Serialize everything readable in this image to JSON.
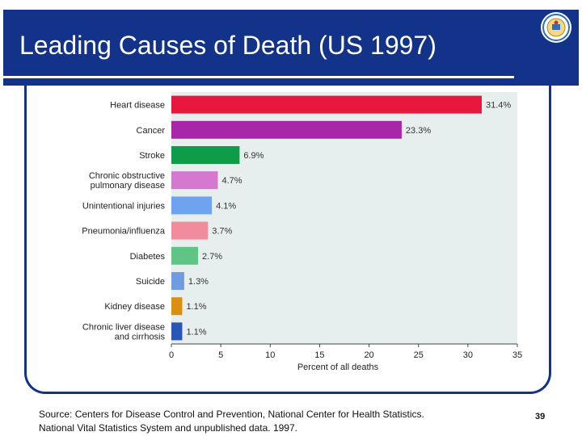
{
  "slide": {
    "title": "Leading Causes of Death (US 1997)",
    "logo_icon": "university-seal-icon",
    "source_line1": "Source: Centers for Disease Control and Prevention, National Center for Health Statistics.",
    "source_line2": "National Vital Statistics System and unpublished data. 1997.",
    "page_number": "39",
    "colors": {
      "header": "#13338a",
      "plot_bg": "#e6efee"
    }
  },
  "chart_data": {
    "type": "bar",
    "orientation": "horizontal",
    "categories": [
      [
        "Heart disease"
      ],
      [
        "Cancer"
      ],
      [
        "Stroke"
      ],
      [
        "Chronic obstructive",
        "pulmonary disease"
      ],
      [
        "Unintentional injuries"
      ],
      [
        "Pneumonia/influenza"
      ],
      [
        "Diabetes"
      ],
      [
        "Suicide"
      ],
      [
        "Kidney disease"
      ],
      [
        "Chronic liver disease",
        "and cirrhosis"
      ]
    ],
    "values": [
      31.4,
      23.3,
      6.9,
      4.7,
      4.1,
      3.7,
      2.7,
      1.3,
      1.1,
      1.1
    ],
    "data_labels": [
      "31.4%",
      "23.3%",
      "6.9%",
      "4.7%",
      "4.1%",
      "3.7%",
      "2.7%",
      "1.3%",
      "1.1%",
      "1.1%"
    ],
    "colors": [
      "#e8173e",
      "#a826a8",
      "#0e9c48",
      "#d479cf",
      "#6ea3f2",
      "#f08c9c",
      "#5fc484",
      "#6f9ce0",
      "#d98f0f",
      "#2a57b5"
    ],
    "xlabel": "Percent of all deaths",
    "xlim": [
      0,
      35
    ],
    "xticks": [
      0,
      5,
      10,
      15,
      20,
      25,
      30,
      35
    ],
    "grid": false
  }
}
